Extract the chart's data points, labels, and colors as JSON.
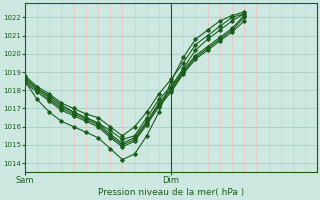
{
  "title": "Pression niveau de la mer( hPa )",
  "xlabel_sam": "Sam",
  "xlabel_dim": "Dim",
  "ylabel_ticks": [
    1014,
    1015,
    1016,
    1017,
    1018,
    1019,
    1020,
    1021,
    1022
  ],
  "ylim": [
    1013.5,
    1022.8
  ],
  "xlim": [
    0,
    48
  ],
  "bg_color": "#cce8e0",
  "grid_color_h": "#aad0c8",
  "grid_color_v": "#f0c0c0",
  "line_color": "#1a5c1a",
  "vline_x": 24,
  "sam_x": 0,
  "dim_x": 24,
  "lines": [
    [
      0,
      1018.7,
      2,
      1018.1,
      4,
      1017.7,
      6,
      1017.2,
      8,
      1016.8,
      10,
      1016.5,
      12,
      1016.2,
      14,
      1015.8,
      16,
      1015.3,
      18,
      1015.5,
      20,
      1016.5,
      22,
      1017.5,
      24,
      1018.2,
      26,
      1019.2,
      28,
      1020.2,
      30,
      1020.8,
      32,
      1021.3,
      34,
      1021.8,
      36,
      1022.2
    ],
    [
      0,
      1018.5,
      2,
      1018.0,
      4,
      1017.5,
      6,
      1017.0,
      8,
      1016.7,
      10,
      1016.4,
      12,
      1016.1,
      14,
      1015.5,
      16,
      1015.0,
      18,
      1015.3,
      20,
      1016.2,
      22,
      1017.2,
      24,
      1018.0,
      26,
      1019.0,
      28,
      1019.8,
      30,
      1020.3,
      32,
      1020.8,
      34,
      1021.3,
      36,
      1022.0
    ],
    [
      0,
      1018.6,
      2,
      1018.1,
      4,
      1017.6,
      6,
      1017.1,
      8,
      1016.8,
      10,
      1016.5,
      12,
      1016.2,
      14,
      1015.6,
      16,
      1015.1,
      18,
      1015.4,
      20,
      1016.3,
      22,
      1017.3,
      24,
      1018.1,
      26,
      1019.1,
      28,
      1019.9,
      30,
      1020.4,
      32,
      1020.9,
      34,
      1021.4,
      36,
      1022.1
    ],
    [
      0,
      1018.4,
      2,
      1017.9,
      4,
      1017.4,
      6,
      1016.9,
      8,
      1016.6,
      10,
      1016.3,
      12,
      1016.0,
      14,
      1015.4,
      16,
      1014.9,
      18,
      1015.2,
      20,
      1016.1,
      22,
      1017.1,
      24,
      1017.9,
      26,
      1018.9,
      28,
      1019.7,
      30,
      1020.2,
      32,
      1020.7,
      34,
      1021.2,
      36,
      1021.8
    ],
    [
      0,
      1018.8,
      2,
      1018.2,
      4,
      1017.8,
      6,
      1017.3,
      8,
      1017.0,
      10,
      1016.7,
      12,
      1016.5,
      14,
      1016.0,
      16,
      1015.5,
      18,
      1016.0,
      20,
      1016.8,
      22,
      1017.8,
      24,
      1018.6,
      26,
      1019.5,
      28,
      1020.5,
      30,
      1021.0,
      32,
      1021.5,
      34,
      1022.0,
      36,
      1022.2
    ],
    [
      0,
      1018.5,
      2,
      1017.5,
      4,
      1016.8,
      6,
      1016.3,
      8,
      1016.0,
      10,
      1015.7,
      12,
      1015.4,
      14,
      1014.8,
      16,
      1014.2,
      18,
      1014.5,
      20,
      1015.5,
      22,
      1016.8,
      24,
      1018.5,
      26,
      1019.8,
      28,
      1020.8,
      30,
      1021.3,
      32,
      1021.8,
      34,
      1022.1,
      36,
      1022.3
    ]
  ]
}
